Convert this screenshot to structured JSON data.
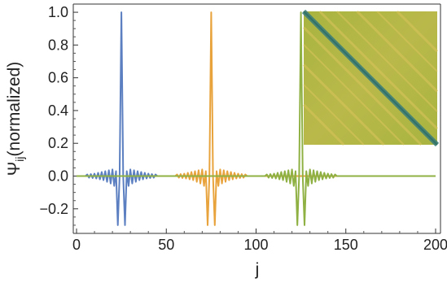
{
  "chart_data": {
    "type": "line",
    "title": "",
    "xlabel": "j",
    "ylabel_main": "Ψ",
    "ylabel_sub": "ij",
    "ylabel_rest": "(normalized)",
    "xlim": [
      0,
      200
    ],
    "ylim": [
      -0.35,
      1.05
    ],
    "x_ticks": [
      0,
      50,
      100,
      150,
      200
    ],
    "x_tick_labels": [
      "0",
      "50",
      "100",
      "150",
      "200"
    ],
    "y_ticks": [
      -0.2,
      0.0,
      0.2,
      0.4,
      0.6,
      0.8,
      1.0
    ],
    "y_tick_labels": [
      "−0.2",
      "0.0",
      "0.2",
      "0.4",
      "0.6",
      "0.8",
      "1.0"
    ],
    "grid": false,
    "legend": "none",
    "series": [
      {
        "color": "#5b7fc0",
        "peak_j": 25,
        "points": [
          [
            0,
            0
          ],
          [
            5,
            0
          ],
          [
            6,
            0.01
          ],
          [
            7,
            -0.01
          ],
          [
            8,
            0.012
          ],
          [
            9,
            -0.012
          ],
          [
            10,
            0.015
          ],
          [
            11,
            -0.015
          ],
          [
            12,
            0.02
          ],
          [
            13,
            -0.02
          ],
          [
            14,
            0.025
          ],
          [
            15,
            -0.025
          ],
          [
            16,
            0.03
          ],
          [
            17,
            -0.035
          ],
          [
            18,
            0.035
          ],
          [
            19,
            -0.045
          ],
          [
            20,
            0.04
          ],
          [
            21,
            -0.06
          ],
          [
            22,
            0.03
          ],
          [
            23,
            -0.3
          ],
          [
            24,
            0.0
          ],
          [
            25,
            1.0
          ],
          [
            26,
            0.0
          ],
          [
            27,
            -0.3
          ],
          [
            28,
            0.03
          ],
          [
            29,
            -0.06
          ],
          [
            30,
            0.04
          ],
          [
            31,
            -0.045
          ],
          [
            32,
            0.035
          ],
          [
            33,
            -0.035
          ],
          [
            34,
            0.03
          ],
          [
            35,
            -0.025
          ],
          [
            36,
            0.025
          ],
          [
            37,
            -0.02
          ],
          [
            38,
            0.02
          ],
          [
            39,
            -0.015
          ],
          [
            40,
            0.015
          ],
          [
            41,
            -0.012
          ],
          [
            42,
            0.012
          ],
          [
            43,
            -0.01
          ],
          [
            44,
            0.01
          ],
          [
            45,
            0
          ],
          [
            200,
            0
          ]
        ]
      },
      {
        "color": "#e8a33c",
        "peak_j": 75,
        "points": [
          [
            0,
            0
          ],
          [
            55,
            0
          ],
          [
            56,
            0.01
          ],
          [
            57,
            -0.01
          ],
          [
            58,
            0.012
          ],
          [
            59,
            -0.012
          ],
          [
            60,
            0.015
          ],
          [
            61,
            -0.015
          ],
          [
            62,
            0.02
          ],
          [
            63,
            -0.02
          ],
          [
            64,
            0.025
          ],
          [
            65,
            -0.025
          ],
          [
            66,
            0.03
          ],
          [
            67,
            -0.035
          ],
          [
            68,
            0.035
          ],
          [
            69,
            -0.045
          ],
          [
            70,
            0.04
          ],
          [
            71,
            -0.06
          ],
          [
            72,
            0.03
          ],
          [
            73,
            -0.3
          ],
          [
            74,
            0.0
          ],
          [
            75,
            1.0
          ],
          [
            76,
            0.0
          ],
          [
            77,
            -0.3
          ],
          [
            78,
            0.03
          ],
          [
            79,
            -0.06
          ],
          [
            80,
            0.04
          ],
          [
            81,
            -0.045
          ],
          [
            82,
            0.035
          ],
          [
            83,
            -0.035
          ],
          [
            84,
            0.03
          ],
          [
            85,
            -0.025
          ],
          [
            86,
            0.025
          ],
          [
            87,
            -0.02
          ],
          [
            88,
            0.02
          ],
          [
            89,
            -0.015
          ],
          [
            90,
            0.015
          ],
          [
            91,
            -0.012
          ],
          [
            92,
            0.012
          ],
          [
            93,
            -0.01
          ],
          [
            94,
            0.01
          ],
          [
            95,
            0
          ],
          [
            200,
            0
          ]
        ]
      },
      {
        "color": "#8fb043",
        "peak_j": 125,
        "points": [
          [
            0,
            0
          ],
          [
            105,
            0
          ],
          [
            106,
            0.01
          ],
          [
            107,
            -0.01
          ],
          [
            108,
            0.012
          ],
          [
            109,
            -0.012
          ],
          [
            110,
            0.015
          ],
          [
            111,
            -0.015
          ],
          [
            112,
            0.02
          ],
          [
            113,
            -0.02
          ],
          [
            114,
            0.025
          ],
          [
            115,
            -0.025
          ],
          [
            116,
            0.03
          ],
          [
            117,
            -0.035
          ],
          [
            118,
            0.035
          ],
          [
            119,
            -0.045
          ],
          [
            120,
            0.04
          ],
          [
            121,
            -0.06
          ],
          [
            122,
            0.03
          ],
          [
            123,
            -0.3
          ],
          [
            124,
            0.0
          ],
          [
            125,
            1.0
          ],
          [
            126,
            0.0
          ],
          [
            127,
            -0.3
          ],
          [
            128,
            0.03
          ],
          [
            129,
            -0.06
          ],
          [
            130,
            0.04
          ],
          [
            131,
            -0.045
          ],
          [
            132,
            0.035
          ],
          [
            133,
            -0.035
          ],
          [
            134,
            0.03
          ],
          [
            135,
            -0.025
          ],
          [
            136,
            0.025
          ],
          [
            137,
            -0.02
          ],
          [
            138,
            0.02
          ],
          [
            139,
            -0.015
          ],
          [
            140,
            0.015
          ],
          [
            141,
            -0.012
          ],
          [
            142,
            0.012
          ],
          [
            143,
            -0.01
          ],
          [
            144,
            0.01
          ],
          [
            145,
            0
          ],
          [
            200,
            0
          ]
        ]
      }
    ],
    "inset": {
      "type": "heatmap",
      "description_colors": {
        "background": "#b7b847",
        "diagonal": "#3f7f78",
        "off_diagonal_bands": "#d8c35a"
      }
    }
  }
}
